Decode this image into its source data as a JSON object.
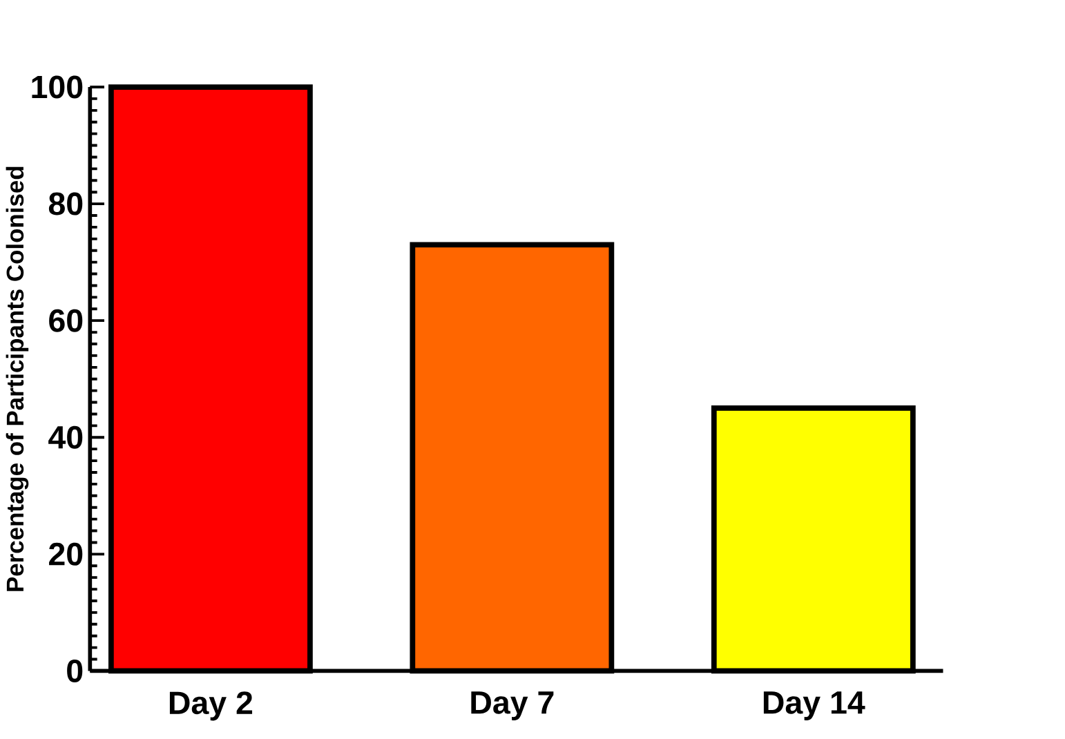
{
  "chart_data": {
    "type": "bar",
    "ylabel": "Percentage of Participants Colonised",
    "categories": [
      "Day 2",
      "Day 7",
      "Day 14"
    ],
    "values": [
      100,
      73,
      45
    ],
    "colors": [
      "#ff0000",
      "#ff6600",
      "#ffff00"
    ],
    "ylim": [
      0,
      100
    ],
    "yticks": [
      0,
      20,
      40,
      60,
      80,
      100
    ]
  }
}
